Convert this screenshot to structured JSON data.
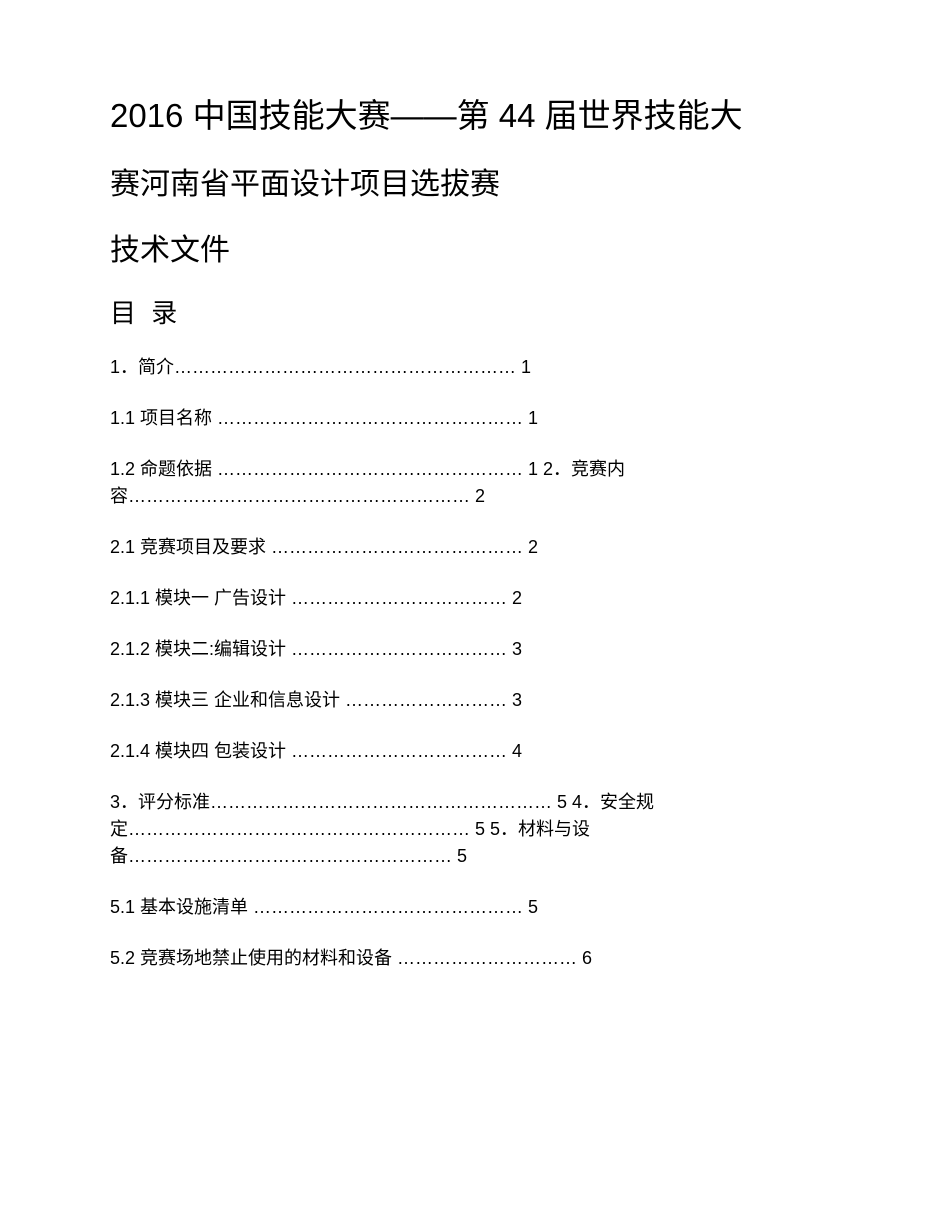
{
  "title": {
    "line1": "2016 中国技能大赛——第 44 届世界技能大",
    "line2": "赛河南省平面设计项目选拔赛",
    "line3": "技术文件"
  },
  "toc": {
    "header": "目 录",
    "entries": [
      "1．简介………………………………………………… 1",
      "1.1 项目名称 …………………………………………… 1",
      "1.2 命题依据 …………………………………………… 1 2．竞赛内容………………………………………………… 2",
      "2.1 竞赛项目及要求 …………………………………… 2",
      "2.1.1 模块一 广告设计 ……………………………… 2",
      "2.1.2 模块二:编辑设计 ……………………………… 3",
      "2.1.3 模块三 企业和信息设计 ……………………… 3",
      "2.1.4 模块四 包装设计 ……………………………… 4",
      "3．评分标准………………………………………………… 5 4．安全规定………………………………………………… 5 5．材料与设备……………………………………………… 5",
      "5.1 基本设施清单 ……………………………………… 5",
      "5.2 竞赛场地禁止使用的材料和设备 ………………………… 6"
    ]
  },
  "styles": {
    "background_color": "#ffffff",
    "text_color": "#000000",
    "title_fontsize": 33,
    "subtitle_fontsize": 30,
    "toc_header_fontsize": 26,
    "toc_entry_fontsize": 18
  }
}
